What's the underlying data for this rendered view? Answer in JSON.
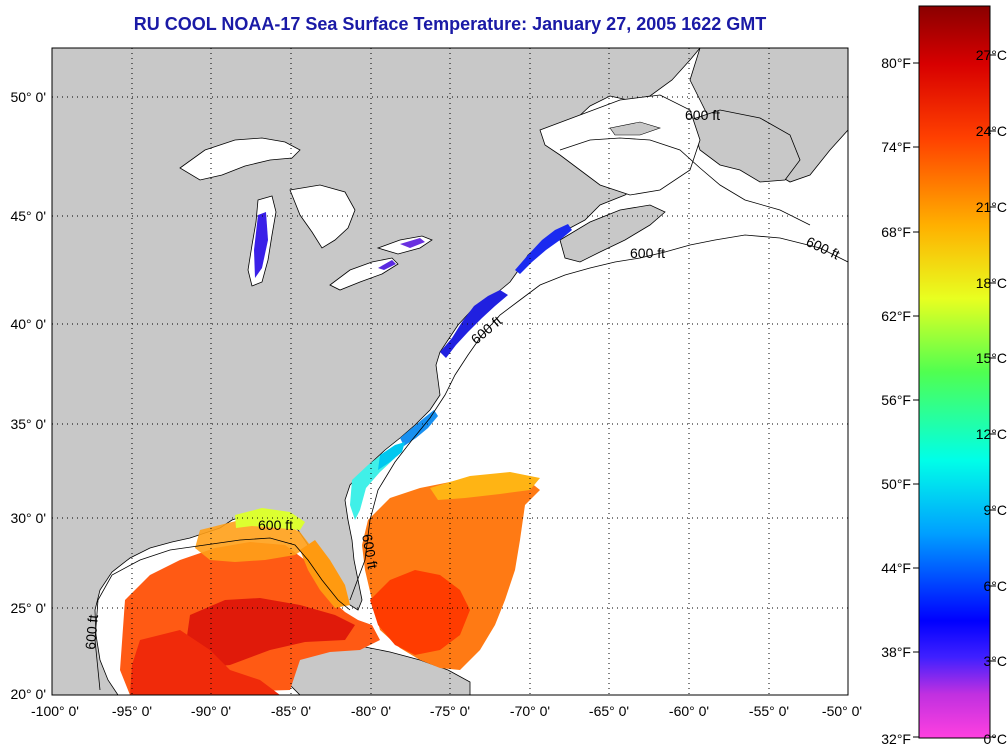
{
  "title": "RU COOL  NOAA-17  Sea Surface Temperature:  January 27, 2005 1622 GMT",
  "axes": {
    "lat_labels": [
      "50° 0'",
      "45° 0'",
      "40° 0'",
      "35° 0'",
      "30° 0'",
      "25° 0'",
      "20° 0'"
    ],
    "lon_labels": [
      "-100° 0'",
      "-95° 0'",
      "-90° 0'",
      "-85° 0'",
      "-80° 0'",
      "-75° 0'",
      "-70° 0'",
      "-65° 0'",
      "-60° 0'",
      "-55° 0'",
      "-50° 0'"
    ]
  },
  "isobath_labels": [
    "600 ft",
    "600 ft",
    "600 ft",
    "600 ft",
    "600 ft",
    "600 ft",
    "600 ft"
  ],
  "colorbar": {
    "fahrenheit_labels": [
      "80°F",
      "74°F",
      "68°F",
      "62°F",
      "56°F",
      "50°F",
      "44°F",
      "38°F",
      "32°F"
    ],
    "celsius_labels": [
      "27°C",
      "24°C",
      "21°C",
      "18°C",
      "15°C",
      "12°C",
      "9°C",
      "6°C",
      "3°C",
      "0°C"
    ],
    "colors": [
      "#ff3cdc",
      "#9a2ce0",
      "#1010ff",
      "#00a0ff",
      "#00ffe8",
      "#40ff70",
      "#e4ff20",
      "#ffb400",
      "#ff3c00",
      "#c80000",
      "#8c0000"
    ]
  },
  "colors": {
    "land": "#c8c8c8",
    "no_data": "#ffffff",
    "title": "#1a1aa6"
  }
}
